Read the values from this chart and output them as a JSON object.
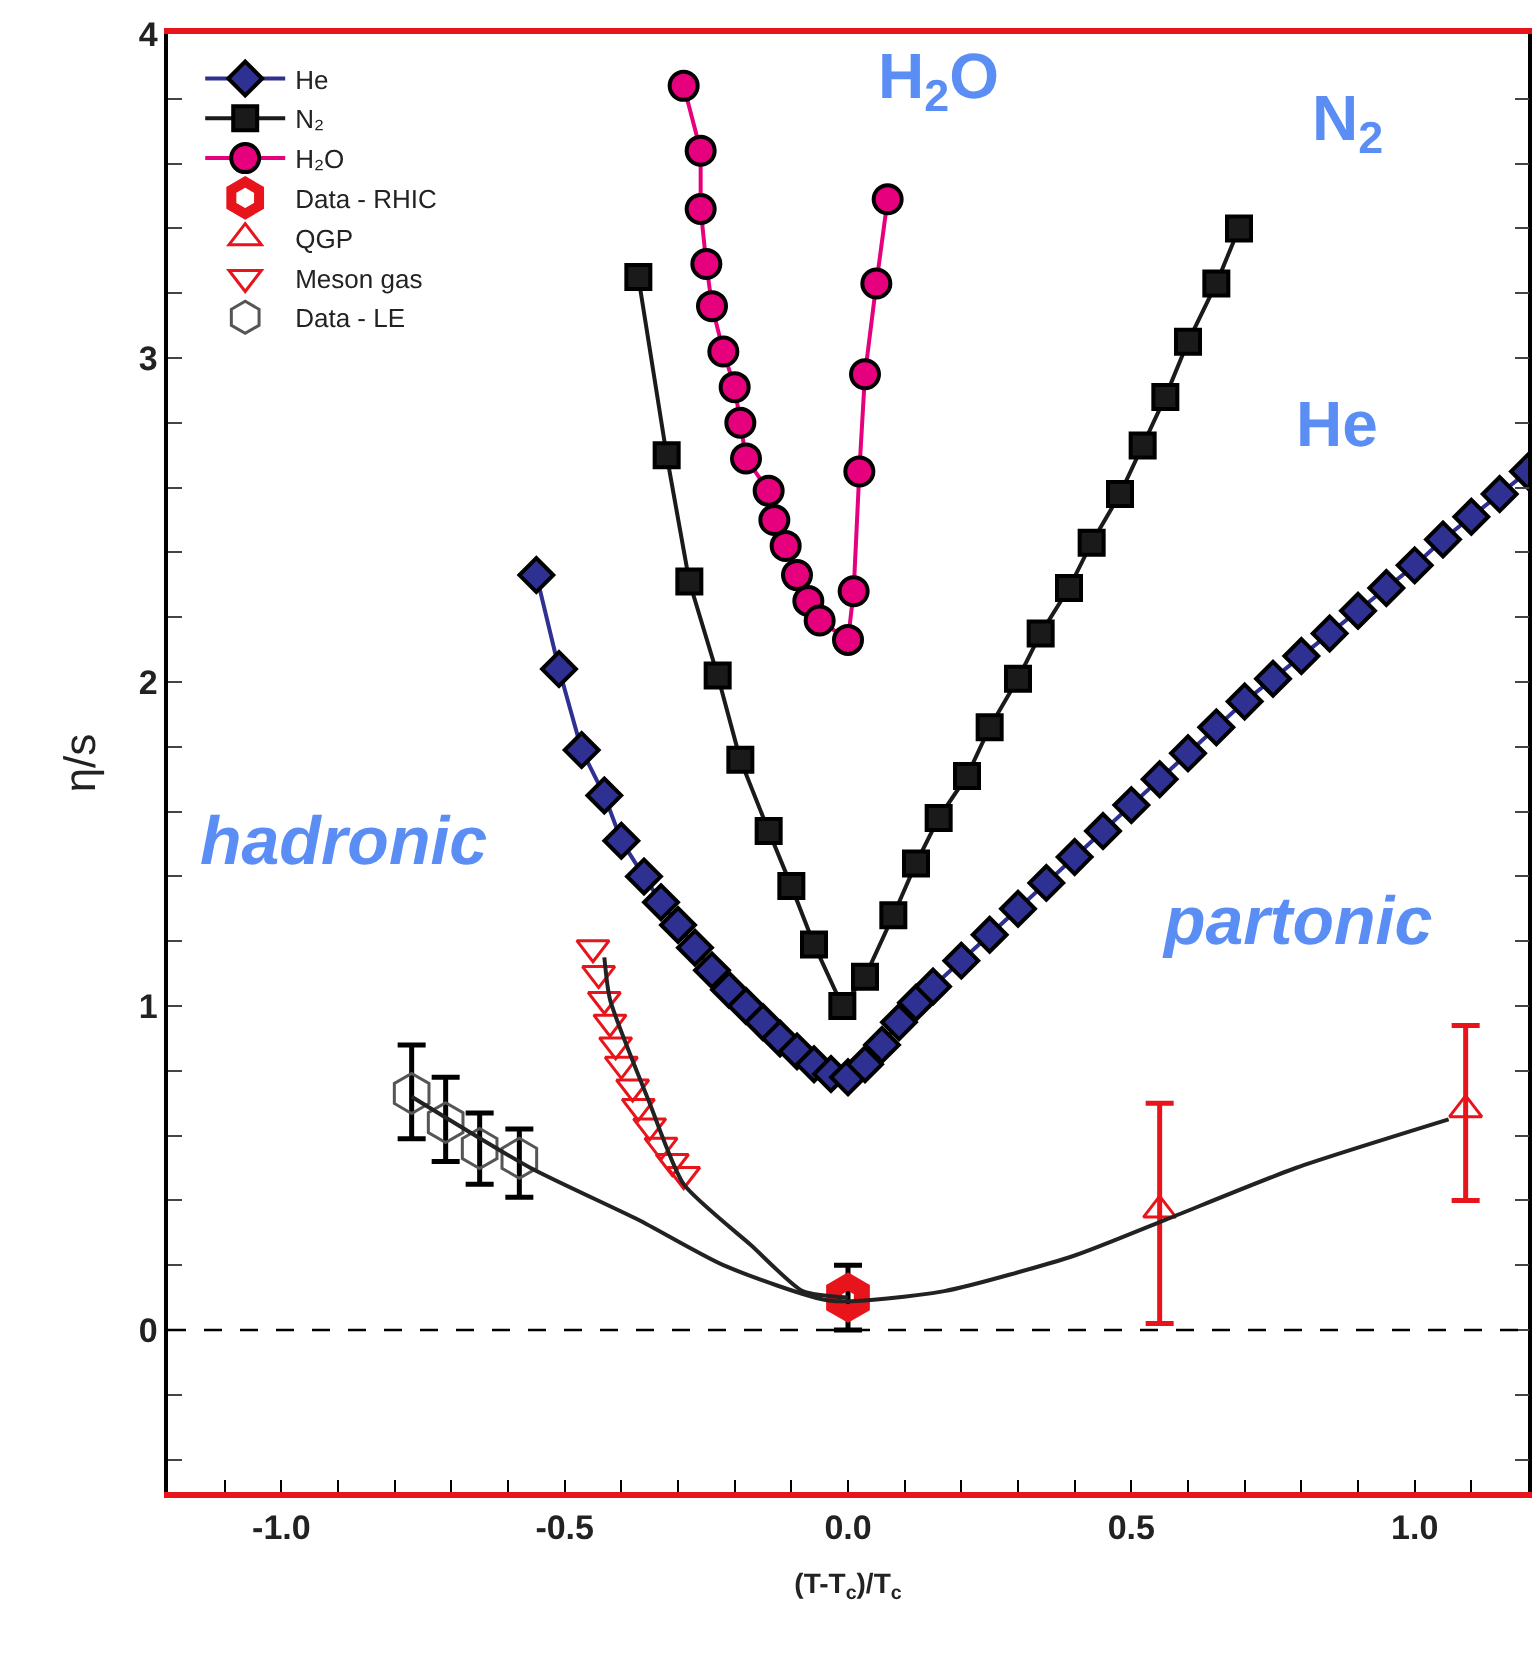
{
  "chart_data": {
    "type": "line",
    "xlabel": "(T-T$_{c}$)/T$_{c}$",
    "ylabel": "η/s",
    "xlim": [
      -1.2,
      1.2
    ],
    "ylim": [
      -0.5,
      4
    ],
    "xticks": [
      {
        "value": -1.2,
        "label": null
      },
      {
        "value": -1.1,
        "label": null
      },
      {
        "value": -1.0,
        "label": "-1.0"
      },
      {
        "value": -0.9,
        "label": null
      },
      {
        "value": -0.8,
        "label": null
      },
      {
        "value": -0.7,
        "label": null
      },
      {
        "value": -0.6,
        "label": null
      },
      {
        "value": -0.5,
        "label": "-0.5"
      },
      {
        "value": -0.4,
        "label": null
      },
      {
        "value": -0.3,
        "label": null
      },
      {
        "value": -0.2,
        "label": null
      },
      {
        "value": -0.1,
        "label": null
      },
      {
        "value": 0.0,
        "label": "0.0"
      },
      {
        "value": 0.1,
        "label": null
      },
      {
        "value": 0.2,
        "label": null
      },
      {
        "value": 0.3,
        "label": null
      },
      {
        "value": 0.4,
        "label": null
      },
      {
        "value": 0.5,
        "label": "0.5"
      },
      {
        "value": 0.6,
        "label": null
      },
      {
        "value": 0.7,
        "label": null
      },
      {
        "value": 0.8,
        "label": null
      },
      {
        "value": 0.9,
        "label": null
      },
      {
        "value": 1.0,
        "label": "1.0"
      },
      {
        "value": 1.1,
        "label": null
      }
    ],
    "yticks": [
      {
        "value": -0.4,
        "label": null
      },
      {
        "value": -0.2,
        "label": null
      },
      0,
      {
        "value": 0.2,
        "label": null
      },
      {
        "value": 0.4,
        "label": null
      },
      {
        "value": 0.6,
        "label": null
      },
      {
        "value": 0.8,
        "label": null
      },
      1,
      {
        "value": 1.2,
        "label": null
      },
      {
        "value": 1.4,
        "label": null
      },
      {
        "value": 1.6,
        "label": null
      },
      {
        "value": 1.8,
        "label": null
      },
      2,
      {
        "value": 2.2,
        "label": null
      },
      {
        "value": 2.4,
        "label": null
      },
      {
        "value": 2.6,
        "label": null
      },
      {
        "value": 2.8,
        "label": null
      },
      3,
      {
        "value": 3.2,
        "label": null
      },
      {
        "value": 3.4,
        "label": null
      },
      {
        "value": 3.6,
        "label": null
      },
      {
        "value": 3.8,
        "label": null
      },
      4
    ],
    "legend": "top left",
    "series": [
      {
        "name": "He",
        "marker": "diamond",
        "color": "#2e3192",
        "x": [
          -0.55,
          -0.51,
          -0.47,
          -0.43,
          -0.4,
          -0.36,
          -0.33,
          -0.3,
          -0.27,
          -0.24,
          -0.21,
          -0.18,
          -0.15,
          -0.12,
          -0.09,
          -0.06,
          -0.03,
          0.0,
          0.03,
          0.06,
          0.09,
          0.12,
          0.15,
          0.2,
          0.25,
          0.3,
          0.35,
          0.4,
          0.45,
          0.5,
          0.55,
          0.6,
          0.65,
          0.7,
          0.75,
          0.8,
          0.85,
          0.9,
          0.95,
          1.0,
          1.05,
          1.1,
          1.15,
          1.2
        ],
        "values": [
          2.33,
          2.04,
          1.79,
          1.65,
          1.51,
          1.4,
          1.32,
          1.25,
          1.18,
          1.11,
          1.05,
          1.0,
          0.95,
          0.9,
          0.86,
          0.82,
          0.79,
          0.78,
          0.82,
          0.88,
          0.95,
          1.01,
          1.06,
          1.14,
          1.22,
          1.3,
          1.38,
          1.46,
          1.54,
          1.62,
          1.7,
          1.78,
          1.86,
          1.94,
          2.01,
          2.08,
          2.15,
          2.22,
          2.29,
          2.36,
          2.44,
          2.51,
          2.58,
          2.65
        ]
      },
      {
        "name": "N₂",
        "marker": "square",
        "color": "#1a1a1a",
        "x": [
          -0.37,
          -0.32,
          -0.28,
          -0.23,
          -0.19,
          -0.14,
          -0.1,
          -0.06,
          -0.01,
          0.03,
          0.08,
          0.12,
          0.16,
          0.21,
          0.25,
          0.3,
          0.34,
          0.39,
          0.43,
          0.48,
          0.52,
          0.56,
          0.6,
          0.65,
          0.69
        ],
        "values": [
          3.25,
          2.7,
          2.31,
          2.02,
          1.76,
          1.54,
          1.37,
          1.19,
          1.0,
          1.09,
          1.28,
          1.44,
          1.58,
          1.71,
          1.86,
          2.01,
          2.15,
          2.29,
          2.43,
          2.58,
          2.73,
          2.88,
          3.05,
          3.23,
          3.4
        ]
      },
      {
        "name": "H₂O",
        "marker": "circle",
        "color": "#e6007e",
        "x": [
          -0.29,
          -0.26,
          -0.26,
          -0.25,
          -0.24,
          -0.22,
          -0.2,
          -0.19,
          -0.18,
          -0.14,
          -0.13,
          -0.11,
          -0.09,
          -0.07,
          -0.05,
          0.0,
          0.01,
          0.02,
          0.03,
          0.05,
          0.07
        ],
        "values": [
          3.84,
          3.64,
          3.46,
          3.29,
          3.16,
          3.02,
          2.91,
          2.8,
          2.69,
          2.59,
          2.5,
          2.42,
          2.33,
          2.25,
          2.19,
          2.13,
          2.28,
          2.65,
          2.95,
          3.23,
          3.49
        ]
      },
      {
        "name": "Data - RHIC",
        "type": "scatter",
        "color": "#e8141c",
        "x": [
          0.0
        ],
        "values": [
          0.1
        ],
        "errors": [
          [
            0.0,
            0.2
          ]
        ]
      },
      {
        "name": "QGP",
        "type": "scatter",
        "marker": "triangle",
        "color": "#e8141c",
        "x": [
          0.55,
          1.09
        ],
        "values": [
          0.37,
          0.68
        ],
        "errors": [
          [
            0.02,
            0.7
          ],
          [
            0.4,
            0.94
          ]
        ]
      },
      {
        "name": "Meson gas",
        "type": "scatter",
        "marker": "triangle-down",
        "color": "#e8141c",
        "x": [
          -0.45,
          -0.44,
          -0.43,
          -0.42,
          -0.41,
          -0.4,
          -0.38,
          -0.37,
          -0.35,
          -0.33,
          -0.31,
          -0.29
        ],
        "values": [
          1.18,
          1.1,
          1.02,
          0.95,
          0.88,
          0.82,
          0.75,
          0.69,
          0.63,
          0.57,
          0.52,
          0.48
        ]
      },
      {
        "name": "Data - LE",
        "type": "scatter",
        "color": "#555555",
        "x": [
          -0.77,
          -0.71,
          -0.65,
          -0.58
        ],
        "values": [
          0.73,
          0.64,
          0.56,
          0.53
        ],
        "errors": [
          [
            0.59,
            0.88
          ],
          [
            0.52,
            0.78
          ],
          [
            0.45,
            0.67
          ],
          [
            0.41,
            0.62
          ]
        ]
      },
      {
        "marker": "none",
        "color": "#222222",
        "x": [
          -0.43,
          -0.42,
          -0.35,
          -0.29,
          -0.17,
          -0.08,
          0.0
        ],
        "values": [
          1.15,
          1.02,
          0.7,
          0.45,
          0.26,
          0.12,
          0.1
        ]
      },
      {
        "marker": "none",
        "color": "#222222",
        "x": [
          -0.77,
          -0.56,
          -0.37,
          -0.22,
          -0.03,
          0.17,
          0.4,
          0.56,
          0.79,
          1.06
        ],
        "values": [
          0.72,
          0.5,
          0.34,
          0.2,
          0.09,
          0.12,
          0.23,
          0.34,
          0.5,
          0.65
        ]
      }
    ],
    "ref_lines": [
      {
        "axis": "y",
        "value": 0,
        "color": "#000000",
        "line_style": "dashed"
      }
    ],
    "annotations": [
      "H$_{2}$O",
      "N$_{2}$",
      "He",
      "hadronic",
      "partonic"
    ]
  }
}
